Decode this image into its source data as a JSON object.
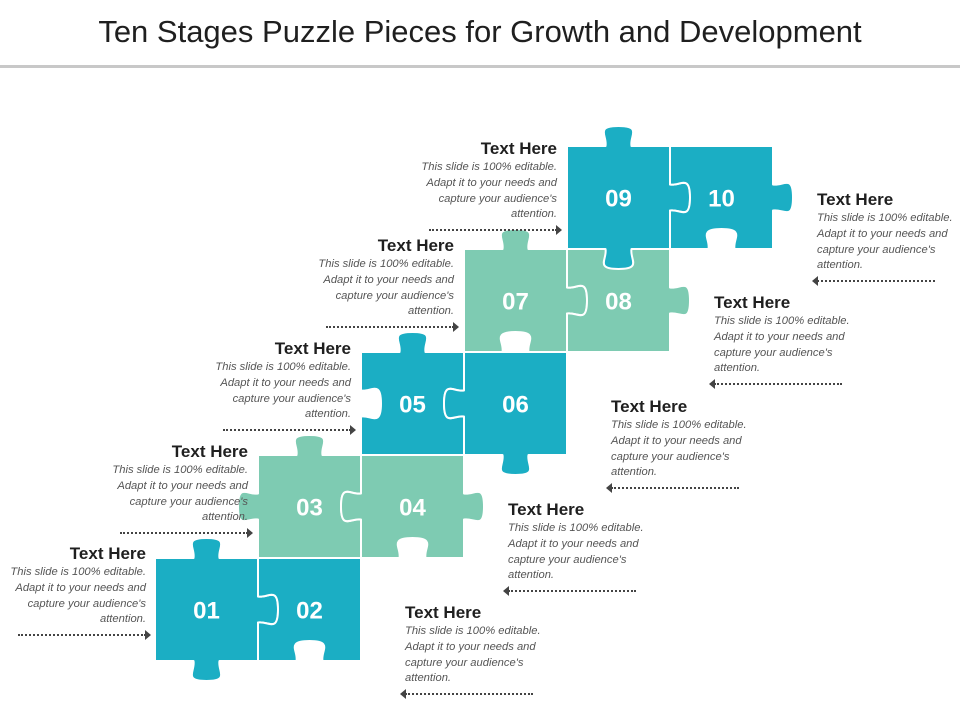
{
  "title": "Ten Stages Puzzle Pieces for Growth and Development",
  "colors": {
    "teal": "#1BAEC4",
    "mint": "#7ECBB2",
    "rule": "#c8c8c8"
  },
  "pieces": [
    {
      "number": "01",
      "color": "teal"
    },
    {
      "number": "02",
      "color": "teal"
    },
    {
      "number": "03",
      "color": "mint"
    },
    {
      "number": "04",
      "color": "mint"
    },
    {
      "number": "05",
      "color": "teal"
    },
    {
      "number": "06",
      "color": "teal"
    },
    {
      "number": "07",
      "color": "mint"
    },
    {
      "number": "08",
      "color": "mint"
    },
    {
      "number": "09",
      "color": "teal"
    },
    {
      "number": "10",
      "color": "teal"
    }
  ],
  "callouts": [
    {
      "stage": "01",
      "side": "left",
      "heading": "Text Here",
      "body": "This slide is 100% editable. Adapt it to your needs and capture your audience's attention."
    },
    {
      "stage": "02",
      "side": "right",
      "heading": "Text Here",
      "body": "This slide is 100% editable. Adapt it to your needs and capture your audience's attention."
    },
    {
      "stage": "03",
      "side": "left",
      "heading": "Text Here",
      "body": "This slide is 100% editable. Adapt it to your needs and capture your audience's attention."
    },
    {
      "stage": "04",
      "side": "right",
      "heading": "Text Here",
      "body": "This slide is 100% editable. Adapt it to your needs and capture your audience's attention."
    },
    {
      "stage": "05",
      "side": "left",
      "heading": "Text Here",
      "body": "This slide is 100% editable. Adapt it to your needs and capture your audience's attention."
    },
    {
      "stage": "06",
      "side": "right",
      "heading": "Text Here",
      "body": "This slide is 100% editable. Adapt it to your needs and capture your audience's attention."
    },
    {
      "stage": "07",
      "side": "left",
      "heading": "Text Here",
      "body": "This slide is 100% editable. Adapt it to your needs and capture your audience's attention."
    },
    {
      "stage": "08",
      "side": "right",
      "heading": "Text Here",
      "body": "This slide is 100% editable. Adapt it to your needs and capture your audience's attention."
    },
    {
      "stage": "09",
      "side": "left",
      "heading": "Text Here",
      "body": "This slide is 100% editable. Adapt it to your needs and capture your audience's attention."
    },
    {
      "stage": "10",
      "side": "right",
      "heading": "Text Here",
      "body": "This slide is 100% editable. Adapt it to your needs and capture your audience's attention."
    }
  ]
}
